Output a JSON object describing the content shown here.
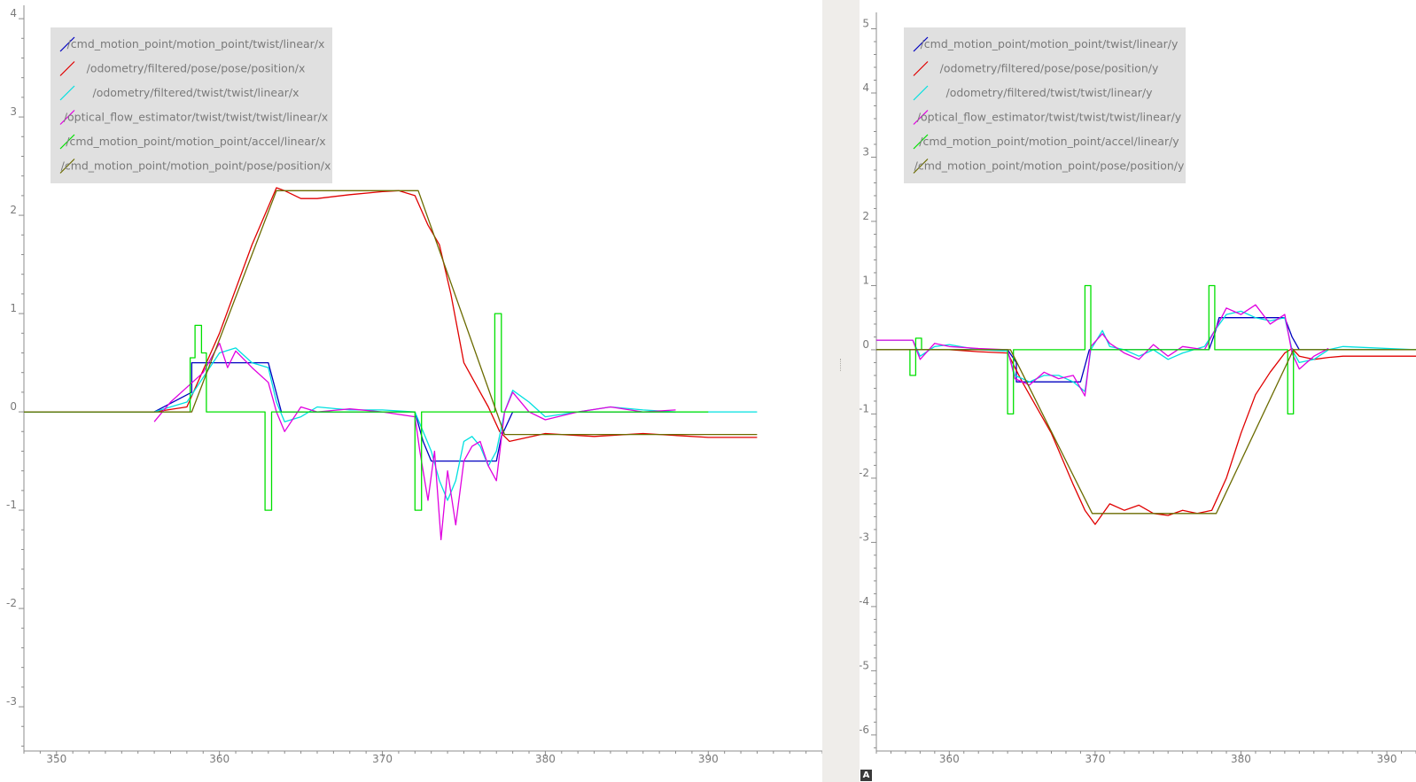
{
  "chart_data": [
    {
      "type": "line",
      "title": "",
      "xlabel": "",
      "ylabel": "",
      "xlim": [
        348,
        397
      ],
      "ylim": [
        -3.45,
        4.1
      ],
      "xticks": [
        350,
        360,
        370,
        380,
        390
      ],
      "yticks": [
        4,
        3,
        2,
        1,
        0,
        -1,
        -2,
        -3
      ],
      "grid": false,
      "legend_position": "top-left",
      "series": [
        {
          "name": "/cmd_motion_point/motion_point/twist/linear/x",
          "color": "#0000c0",
          "x": [
            348,
            356,
            358.3,
            358.3,
            363.0,
            363.8,
            372.0,
            372.5,
            373.0,
            377.0,
            377.3,
            378.0,
            388
          ],
          "y": [
            0,
            0,
            0.2,
            0.5,
            0.5,
            0,
            0,
            -0.3,
            -0.5,
            -0.5,
            -0.25,
            0,
            0
          ]
        },
        {
          "name": "/odometry/filtered/pose/pose/position/x",
          "color": "#e00000",
          "x": [
            348,
            356,
            358,
            360,
            362,
            363.5,
            364,
            365,
            366,
            368,
            370,
            371,
            372,
            372.8,
            373.5,
            374.2,
            375,
            376,
            376.5,
            377.2,
            377.8,
            380,
            383,
            386,
            390,
            393
          ],
          "y": [
            0,
            0,
            0.05,
            0.8,
            1.7,
            2.28,
            2.25,
            2.17,
            2.17,
            2.21,
            2.24,
            2.25,
            2.2,
            1.9,
            1.7,
            1.2,
            0.5,
            0.2,
            0.05,
            -0.2,
            -0.3,
            -0.22,
            -0.25,
            -0.22,
            -0.26,
            -0.26
          ]
        },
        {
          "name": "/odometry/filtered/twist/twist/linear/x",
          "color": "#00e0e0",
          "x": [
            348,
            356,
            357,
            358,
            359,
            360,
            361,
            362,
            363,
            363.5,
            364,
            365,
            366,
            368,
            370,
            372,
            372.5,
            373,
            373.5,
            374,
            374.5,
            375,
            375.5,
            376,
            376.5,
            377,
            377.5,
            378,
            379,
            380,
            382,
            384,
            386,
            388,
            393
          ],
          "y": [
            0,
            0,
            0.05,
            0.1,
            0.35,
            0.6,
            0.65,
            0.5,
            0.45,
            0.1,
            -0.1,
            -0.05,
            0.05,
            0.02,
            0.02,
            0.0,
            -0.2,
            -0.4,
            -0.7,
            -0.9,
            -0.7,
            -0.3,
            -0.25,
            -0.35,
            -0.55,
            -0.4,
            0.0,
            0.22,
            0.1,
            -0.05,
            0.0,
            0.05,
            0.02,
            0.0,
            0.0
          ]
        },
        {
          "name": "/optical_flow_estimator/twist/twist/twist/linear/x",
          "color": "#e000e0",
          "x": [
            356,
            357,
            358,
            359,
            359.5,
            360,
            360.5,
            361,
            362,
            363,
            363.5,
            364,
            365,
            366,
            368,
            370,
            372,
            372.3,
            372.8,
            373.2,
            373.6,
            374,
            374.5,
            375,
            375.5,
            376,
            376.5,
            377,
            377.5,
            378,
            379,
            380,
            382,
            384,
            386,
            388
          ],
          "y": [
            -0.1,
            0.1,
            0.25,
            0.4,
            0.55,
            0.7,
            0.45,
            0.62,
            0.45,
            0.3,
            0.0,
            -0.2,
            0.05,
            0.0,
            0.03,
            0.0,
            -0.05,
            -0.4,
            -0.9,
            -0.4,
            -1.3,
            -0.6,
            -1.15,
            -0.5,
            -0.35,
            -0.3,
            -0.55,
            -0.7,
            0.0,
            0.2,
            0.0,
            -0.08,
            0.0,
            0.05,
            0.0,
            0.02
          ]
        },
        {
          "name": "/cmd_motion_point/motion_point/accel/linear/x",
          "color": "#00e000",
          "x": [
            348,
            358.2,
            358.2,
            358.5,
            358.5,
            358.9,
            358.9,
            359.2,
            359.2,
            362.8,
            362.8,
            363.2,
            363.2,
            372.0,
            372.0,
            372.4,
            372.4,
            376.9,
            376.9,
            377.3,
            377.3,
            390
          ],
          "y": [
            0,
            0,
            0.55,
            0.55,
            0.88,
            0.88,
            0.6,
            0.6,
            0,
            0,
            -1.0,
            -1.0,
            0,
            0,
            -1.0,
            -1.0,
            0,
            0,
            1.0,
            1.0,
            0,
            0
          ]
        },
        {
          "name": "/cmd_motion_point/motion_point/pose/position/x",
          "color": "#6b6b00",
          "x": [
            348,
            356,
            358.3,
            363.5,
            372.2,
            377.5,
            393
          ],
          "y": [
            0,
            0,
            0.0,
            2.25,
            2.25,
            -0.23,
            -0.23
          ]
        }
      ]
    },
    {
      "type": "line",
      "title": "",
      "xlabel": "",
      "ylabel": "",
      "xlim": [
        355,
        392
      ],
      "ylim": [
        -6.25,
        5.2
      ],
      "xticks": [
        360,
        370,
        380,
        390
      ],
      "yticks": [
        5,
        4,
        3,
        2,
        1,
        0,
        -1,
        -2,
        -3,
        -4,
        -5,
        -6
      ],
      "grid": false,
      "legend_position": "top-left",
      "series": [
        {
          "name": "/cmd_motion_point/motion_point/twist/linear/y",
          "color": "#0000c0",
          "x": [
            355,
            364,
            364.6,
            364.6,
            369,
            369.3,
            369.6,
            377.8,
            378.2,
            378.5,
            383.0,
            383.5,
            384,
            392
          ],
          "y": [
            0,
            0,
            -0.2,
            -0.5,
            -0.5,
            -0.25,
            0,
            0,
            0.25,
            0.5,
            0.5,
            0.2,
            0,
            0
          ]
        },
        {
          "name": "/odometry/filtered/pose/pose/position/y",
          "color": "#e00000",
          "x": [
            355,
            357,
            358,
            360,
            362,
            364,
            365,
            367,
            368.5,
            369.3,
            370,
            371,
            372,
            373,
            374,
            375,
            376,
            377,
            378,
            379,
            380,
            381,
            382,
            383,
            383.5,
            384,
            385,
            386,
            387,
            392
          ],
          "y": [
            0,
            0,
            0.0,
            0,
            -0.03,
            -0.05,
            -0.5,
            -1.3,
            -2.1,
            -2.5,
            -2.72,
            -2.4,
            -2.5,
            -2.42,
            -2.55,
            -2.58,
            -2.5,
            -2.55,
            -2.5,
            -2.0,
            -1.3,
            -0.7,
            -0.35,
            -0.05,
            0.02,
            -0.1,
            -0.15,
            -0.12,
            -0.1,
            -0.1
          ]
        },
        {
          "name": "/odometry/filtered/twist/twist/linear/y",
          "color": "#00e0e0",
          "x": [
            355,
            357.5,
            358,
            359,
            360,
            362,
            364,
            364.5,
            365.5,
            366.5,
            367.5,
            368.5,
            369.3,
            369.7,
            370.5,
            371,
            372,
            373,
            374,
            375,
            376,
            377.5,
            378.2,
            379,
            380,
            381,
            382,
            383,
            383.5,
            384,
            385,
            386,
            387,
            392
          ],
          "y": [
            0.15,
            0.15,
            -0.1,
            0.05,
            0.08,
            0.0,
            -0.02,
            -0.4,
            -0.5,
            -0.4,
            -0.4,
            -0.5,
            -0.65,
            0.0,
            0.3,
            0.05,
            0.0,
            -0.1,
            0.0,
            -0.15,
            -0.05,
            0.05,
            0.3,
            0.55,
            0.6,
            0.5,
            0.45,
            0.5,
            0.0,
            -0.2,
            -0.15,
            0.0,
            0.05,
            0.0
          ]
        },
        {
          "name": "/optical_flow_estimator/twist/twist/twist/linear/y",
          "color": "#e000e0",
          "x": [
            355,
            357.5,
            358,
            359,
            360,
            362,
            364,
            364.5,
            365.5,
            366.5,
            367.5,
            368.5,
            369.3,
            369.7,
            370.5,
            371,
            372,
            373,
            374,
            375,
            376,
            377.5,
            378.2,
            379,
            380,
            381,
            382,
            383,
            383.5,
            384,
            385,
            386
          ],
          "y": [
            0.15,
            0.15,
            -0.15,
            0.1,
            0.05,
            0.02,
            0.0,
            -0.45,
            -0.55,
            -0.35,
            -0.45,
            -0.4,
            -0.72,
            0.05,
            0.25,
            0.1,
            -0.05,
            -0.15,
            0.08,
            -0.1,
            0.05,
            0.0,
            0.3,
            0.65,
            0.55,
            0.7,
            0.4,
            0.55,
            -0.05,
            -0.3,
            -0.1,
            0.02
          ]
        },
        {
          "name": "/cmd_motion_point/motion_point/accel/linear/y",
          "color": "#00e000",
          "x": [
            355,
            357.3,
            357.3,
            357.7,
            357.7,
            358.1,
            358.1,
            364.0,
            364.0,
            364.4,
            364.4,
            369.3,
            369.3,
            369.7,
            369.7,
            377.8,
            377.8,
            378.2,
            378.2,
            383.2,
            383.2,
            383.6,
            383.6,
            392
          ],
          "y": [
            0,
            0,
            -0.4,
            -0.4,
            0.18,
            0.18,
            0,
            0,
            -1.0,
            -1.0,
            0,
            0,
            1.0,
            1.0,
            0,
            0,
            1.0,
            1.0,
            0,
            0,
            -1.0,
            -1.0,
            0,
            0
          ]
        },
        {
          "name": "/cmd_motion_point/motion_point/pose/position/y",
          "color": "#6b6b00",
          "x": [
            355,
            364.2,
            369.8,
            378.3,
            383.6,
            392
          ],
          "y": [
            0,
            0,
            -2.55,
            -2.55,
            0,
            0
          ]
        }
      ]
    }
  ]
}
